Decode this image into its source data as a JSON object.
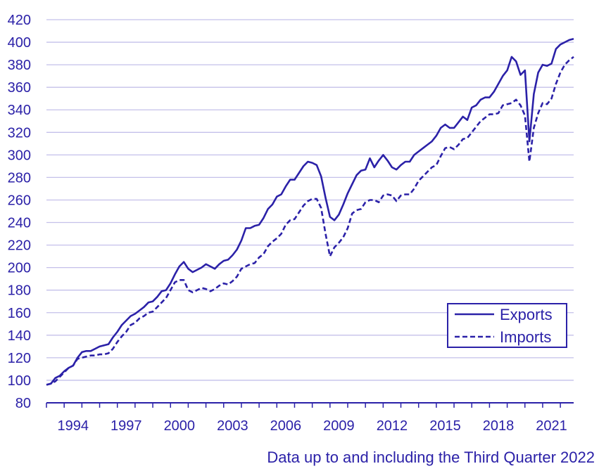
{
  "chart_data": {
    "type": "line",
    "title": "",
    "xlabel": "",
    "ylabel": "",
    "ylim": [
      80,
      420
    ],
    "y_ticks": [
      "80",
      "100",
      "120",
      "140",
      "160",
      "180",
      "200",
      "220",
      "240",
      "260",
      "280",
      "300",
      "320",
      "340",
      "360",
      "380",
      "400",
      "420"
    ],
    "x_tick_labels": [
      "1994",
      "1997",
      "2000",
      "2003",
      "2006",
      "2009",
      "2012",
      "2015",
      "2018",
      "2021"
    ],
    "x_tick_values": [
      1994,
      1997,
      2000,
      2003,
      2006,
      2009,
      2012,
      2015,
      2018,
      2021
    ],
    "xlim": [
      1993.0,
      2022.75
    ],
    "grid": true,
    "legend_position": "bottom-right",
    "series": [
      {
        "name": "Exports",
        "style": "solid",
        "color": "#2b21a8",
        "x": [
          1993.0,
          1993.25,
          1993.5,
          1993.75,
          1994.0,
          1994.25,
          1994.5,
          1994.75,
          1995.0,
          1995.25,
          1995.5,
          1995.75,
          1996.0,
          1996.25,
          1996.5,
          1996.75,
          1997.0,
          1997.25,
          1997.5,
          1997.75,
          1998.0,
          1998.25,
          1998.5,
          1998.75,
          1999.0,
          1999.25,
          1999.5,
          1999.75,
          2000.0,
          2000.25,
          2000.5,
          2000.75,
          2001.0,
          2001.25,
          2001.5,
          2001.75,
          2002.0,
          2002.25,
          2002.5,
          2002.75,
          2003.0,
          2003.25,
          2003.5,
          2003.75,
          2004.0,
          2004.25,
          2004.5,
          2004.75,
          2005.0,
          2005.25,
          2005.5,
          2005.75,
          2006.0,
          2006.25,
          2006.5,
          2006.75,
          2007.0,
          2007.25,
          2007.5,
          2007.75,
          2008.0,
          2008.25,
          2008.5,
          2008.75,
          2009.0,
          2009.25,
          2009.5,
          2009.75,
          2010.0,
          2010.25,
          2010.5,
          2010.75,
          2011.0,
          2011.25,
          2011.5,
          2011.75,
          2012.0,
          2012.25,
          2012.5,
          2012.75,
          2013.0,
          2013.25,
          2013.5,
          2013.75,
          2014.0,
          2014.25,
          2014.5,
          2014.75,
          2015.0,
          2015.25,
          2015.5,
          2015.75,
          2016.0,
          2016.25,
          2016.5,
          2016.75,
          2017.0,
          2017.25,
          2017.5,
          2017.75,
          2018.0,
          2018.25,
          2018.5,
          2018.75,
          2019.0,
          2019.25,
          2019.5,
          2019.75,
          2020.0,
          2020.25,
          2020.5,
          2020.75,
          2021.0,
          2021.25,
          2021.5,
          2021.75,
          2022.0,
          2022.25,
          2022.5,
          2022.75
        ],
        "values": [
          96,
          97,
          102,
          104,
          108,
          111,
          113,
          120,
          125,
          126,
          126,
          128,
          130,
          131,
          132,
          138,
          143,
          149,
          153,
          157,
          159,
          162,
          165,
          169,
          170,
          174,
          179,
          180,
          186,
          194,
          201,
          205,
          199,
          196,
          198,
          200,
          203,
          201,
          199,
          203,
          206,
          207,
          211,
          216,
          224,
          235,
          235,
          237,
          238,
          244,
          252,
          256,
          263,
          265,
          272,
          278,
          278,
          284,
          290,
          294,
          293,
          291,
          281,
          262,
          245,
          242,
          247,
          256,
          266,
          274,
          282,
          286,
          287,
          297,
          289,
          295,
          300,
          295,
          289,
          287,
          291,
          294,
          294,
          300,
          303,
          306,
          309,
          312,
          317,
          324,
          327,
          324,
          324,
          329,
          334,
          331,
          342,
          344,
          349,
          351,
          351,
          356,
          363,
          370,
          375,
          387,
          383,
          371,
          375,
          312,
          354,
          373,
          380,
          379,
          381,
          394,
          398,
          400,
          402,
          403
        ]
      },
      {
        "name": "Imports",
        "style": "dashed",
        "color": "#2b21a8",
        "x": [
          1993.0,
          1993.25,
          1993.5,
          1993.75,
          1994.0,
          1994.25,
          1994.5,
          1994.75,
          1995.0,
          1995.25,
          1995.5,
          1995.75,
          1996.0,
          1996.25,
          1996.5,
          1996.75,
          1997.0,
          1997.25,
          1997.5,
          1997.75,
          1998.0,
          1998.25,
          1998.5,
          1998.75,
          1999.0,
          1999.25,
          1999.5,
          1999.75,
          2000.0,
          2000.25,
          2000.5,
          2000.75,
          2001.0,
          2001.25,
          2001.5,
          2001.75,
          2002.0,
          2002.25,
          2002.5,
          2002.75,
          2003.0,
          2003.25,
          2003.5,
          2003.75,
          2004.0,
          2004.25,
          2004.5,
          2004.75,
          2005.0,
          2005.25,
          2005.5,
          2005.75,
          2006.0,
          2006.25,
          2006.5,
          2006.75,
          2007.0,
          2007.25,
          2007.5,
          2007.75,
          2008.0,
          2008.25,
          2008.5,
          2008.75,
          2009.0,
          2009.25,
          2009.5,
          2009.75,
          2010.0,
          2010.25,
          2010.5,
          2010.75,
          2011.0,
          2011.25,
          2011.5,
          2011.75,
          2012.0,
          2012.25,
          2012.5,
          2012.75,
          2013.0,
          2013.25,
          2013.5,
          2013.75,
          2014.0,
          2014.25,
          2014.5,
          2014.75,
          2015.0,
          2015.25,
          2015.5,
          2015.75,
          2016.0,
          2016.25,
          2016.5,
          2016.75,
          2017.0,
          2017.25,
          2017.5,
          2017.75,
          2018.0,
          2018.25,
          2018.5,
          2018.75,
          2019.0,
          2019.25,
          2019.5,
          2019.75,
          2020.0,
          2020.25,
          2020.5,
          2020.75,
          2021.0,
          2021.25,
          2021.5,
          2021.75,
          2022.0,
          2022.25,
          2022.5,
          2022.75
        ],
        "values": [
          96,
          97,
          99,
          103,
          107,
          111,
          113,
          119,
          120,
          121,
          122,
          122,
          123,
          123,
          124,
          128,
          134,
          139,
          143,
          149,
          151,
          155,
          157,
          160,
          161,
          165,
          169,
          173,
          180,
          187,
          189,
          189,
          180,
          178,
          180,
          182,
          181,
          179,
          181,
          184,
          186,
          185,
          188,
          192,
          199,
          201,
          203,
          204,
          209,
          212,
          219,
          223,
          226,
          230,
          238,
          242,
          243,
          249,
          255,
          259,
          261,
          261,
          253,
          230,
          210,
          218,
          222,
          227,
          235,
          248,
          251,
          252,
          258,
          260,
          260,
          258,
          264,
          265,
          264,
          259,
          264,
          265,
          265,
          270,
          277,
          281,
          285,
          289,
          291,
          299,
          306,
          307,
          305,
          309,
          314,
          315,
          320,
          325,
          330,
          333,
          336,
          336,
          337,
          344,
          345,
          346,
          349,
          344,
          335,
          294,
          324,
          337,
          346,
          345,
          350,
          363,
          373,
          380,
          384,
          387
        ]
      }
    ]
  },
  "footnote": "Data up to and including the Third Quarter 2022"
}
